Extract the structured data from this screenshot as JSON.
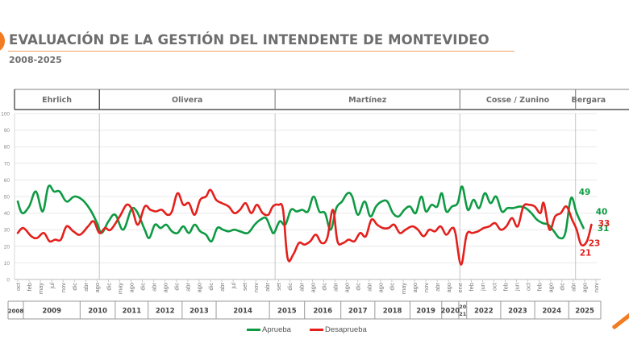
{
  "header": {
    "title": "EVALUACIÓN DE LA GESTIÓN DEL INTENDENTE DE MONTEVIDEO",
    "subtitle": "2008-2025"
  },
  "colors": {
    "aprueba": "#0e9a43",
    "desaprueba": "#e3201c",
    "accent": "#f37b20",
    "grid": "#e6e6e6",
    "text": "#6d6d6d"
  },
  "chart_data": {
    "type": "line",
    "title": "EVALUACIÓN DE LA GESTIÓN DEL INTENDENTE DE MONTEVIDEO",
    "subtitle": "2008-2025",
    "xlabel": "",
    "ylabel": "",
    "ylim": [
      0,
      100
    ],
    "yticks": [
      0,
      10,
      20,
      30,
      40,
      50,
      60,
      70,
      80,
      90,
      100
    ],
    "grid": true,
    "legend_position": "bottom-center",
    "x_ticks": [
      "oct",
      "feb",
      "may",
      "jul",
      "nov",
      "dic",
      "abr",
      "ago",
      "dic",
      "may",
      "ago",
      "dic",
      "abr",
      "ago",
      "dic",
      "abr",
      "ago",
      "dic",
      "abr",
      "jul",
      "set",
      "nov",
      "abr",
      "set",
      "dic",
      "abr",
      "ago",
      "dic",
      "abr",
      "ago",
      "dic",
      "abr",
      "ago",
      "dic",
      "may",
      "ago",
      "nov",
      "abr",
      "ago",
      "ene",
      "feb",
      "jun",
      "oct",
      "feb",
      "jun",
      "oct",
      "feb",
      "ago",
      "dic",
      "abr",
      "ago",
      "nov"
    ],
    "years": [
      {
        "label": "2008",
        "from": 0,
        "to": 0.5
      },
      {
        "label": "2009",
        "from": 0.5,
        "to": 5.5
      },
      {
        "label": "2010",
        "from": 5.5,
        "to": 8.6
      },
      {
        "label": "2011",
        "from": 8.6,
        "to": 11.5
      },
      {
        "label": "2012",
        "from": 11.5,
        "to": 14.5
      },
      {
        "label": "2013",
        "from": 14.5,
        "to": 17.5
      },
      {
        "label": "2014",
        "from": 17.5,
        "to": 22.2
      },
      {
        "label": "2015",
        "from": 22.2,
        "to": 25.3
      },
      {
        "label": "2016",
        "from": 25.3,
        "to": 28.5
      },
      {
        "label": "2017",
        "from": 28.5,
        "to": 31.5
      },
      {
        "label": "2018",
        "from": 31.5,
        "to": 34.6
      },
      {
        "label": "2019",
        "from": 34.6,
        "to": 37.4
      },
      {
        "label": "2020",
        "from": 37.4,
        "to": 38.9
      },
      {
        "label": "20\n21",
        "from": 38.9,
        "to": 39.6
      },
      {
        "label": "2022",
        "from": 39.6,
        "to": 42.6
      },
      {
        "label": "2023",
        "from": 42.6,
        "to": 45.6
      },
      {
        "label": "2024",
        "from": 45.6,
        "to": 48.6
      },
      {
        "label": "2025",
        "from": 48.6,
        "to": 51.5
      }
    ],
    "periods": [
      {
        "label": "Ehrlich",
        "from": -0.5,
        "to": 7.2
      },
      {
        "label": "Olivera",
        "from": 7.2,
        "to": 22.7
      },
      {
        "label": "Martínez",
        "from": 22.7,
        "to": 39.0
      },
      {
        "label": "Cosse / Zunino",
        "from": 39.0,
        "to": 49.2
      },
      {
        "label": "Bergara",
        "from": 49.2,
        "to": 51.5
      }
    ],
    "period_dividers": [
      7.2,
      22.7,
      39.0,
      49.2
    ],
    "series": [
      {
        "name": "Aprueba",
        "color": "#0e9a43",
        "points": [
          [
            0,
            47
          ],
          [
            0.4,
            40
          ],
          [
            1,
            44
          ],
          [
            1.6,
            53
          ],
          [
            2.2,
            41
          ],
          [
            2.7,
            56
          ],
          [
            3.2,
            53
          ],
          [
            3.7,
            53
          ],
          [
            4.3,
            47
          ],
          [
            5,
            50
          ],
          [
            5.7,
            48
          ],
          [
            6.4,
            42
          ],
          [
            7,
            34
          ],
          [
            7.4,
            28
          ],
          [
            8,
            35
          ],
          [
            8.6,
            39
          ],
          [
            9.3,
            30
          ],
          [
            10,
            42
          ],
          [
            10.5,
            41
          ],
          [
            11.2,
            30
          ],
          [
            11.6,
            25
          ],
          [
            12.1,
            33
          ],
          [
            12.6,
            31
          ],
          [
            13.1,
            33
          ],
          [
            13.6,
            29
          ],
          [
            14.1,
            28
          ],
          [
            14.6,
            32
          ],
          [
            15.1,
            28
          ],
          [
            15.6,
            33
          ],
          [
            16.1,
            29
          ],
          [
            16.6,
            27
          ],
          [
            17.1,
            23
          ],
          [
            17.6,
            31
          ],
          [
            18.1,
            30
          ],
          [
            18.6,
            29
          ],
          [
            19.1,
            30
          ],
          [
            19.6,
            29
          ],
          [
            20.3,
            28
          ],
          [
            20.9,
            33
          ],
          [
            21.4,
            36
          ],
          [
            21.9,
            37
          ],
          [
            22.3,
            31
          ],
          [
            22.6,
            28
          ],
          [
            23.1,
            35
          ],
          [
            23.6,
            33
          ],
          [
            24.1,
            42
          ],
          [
            24.6,
            41
          ],
          [
            25.1,
            42
          ],
          [
            25.6,
            41
          ],
          [
            26.1,
            50
          ],
          [
            26.6,
            41
          ],
          [
            27.1,
            40
          ],
          [
            27.6,
            30
          ],
          [
            28.1,
            43
          ],
          [
            28.6,
            47
          ],
          [
            29.1,
            52
          ],
          [
            29.5,
            50
          ],
          [
            30,
            39
          ],
          [
            30.6,
            47
          ],
          [
            31.1,
            38
          ],
          [
            31.6,
            44
          ],
          [
            32.1,
            47
          ],
          [
            32.6,
            47
          ],
          [
            33.1,
            40
          ],
          [
            33.6,
            38
          ],
          [
            34.1,
            42
          ],
          [
            34.6,
            44
          ],
          [
            35.1,
            40
          ],
          [
            35.6,
            50
          ],
          [
            36,
            41
          ],
          [
            36.5,
            45
          ],
          [
            37,
            44
          ],
          [
            37.4,
            52
          ],
          [
            37.8,
            41
          ],
          [
            38.3,
            44
          ],
          [
            38.8,
            46
          ],
          [
            39.2,
            56
          ],
          [
            39.7,
            42
          ],
          [
            40.2,
            48
          ],
          [
            40.7,
            43
          ],
          [
            41.2,
            52
          ],
          [
            41.7,
            46
          ],
          [
            42.2,
            50
          ],
          [
            42.7,
            41
          ],
          [
            43.2,
            43
          ],
          [
            43.7,
            43
          ],
          [
            44.3,
            44
          ],
          [
            44.8,
            43
          ],
          [
            45.3,
            40
          ],
          [
            45.8,
            36
          ],
          [
            46.3,
            34
          ],
          [
            46.8,
            33
          ],
          [
            47.3,
            29
          ],
          [
            47.8,
            25
          ],
          [
            48.3,
            28
          ],
          [
            48.8,
            49
          ],
          [
            49.3,
            40
          ],
          [
            49.9,
            31
          ]
        ]
      },
      {
        "name": "Desaprueba",
        "color": "#e3201c",
        "points": [
          [
            0,
            28
          ],
          [
            0.5,
            31
          ],
          [
            1.2,
            26
          ],
          [
            1.7,
            25
          ],
          [
            2.3,
            28
          ],
          [
            2.8,
            23
          ],
          [
            3.3,
            24
          ],
          [
            3.8,
            24
          ],
          [
            4.3,
            32
          ],
          [
            4.9,
            29
          ],
          [
            5.5,
            27
          ],
          [
            6.2,
            32
          ],
          [
            6.7,
            35
          ],
          [
            7.2,
            28
          ],
          [
            7.7,
            31
          ],
          [
            8.2,
            30
          ],
          [
            9,
            38
          ],
          [
            9.6,
            45
          ],
          [
            10.1,
            42
          ],
          [
            10.6,
            33
          ],
          [
            11.2,
            44
          ],
          [
            11.7,
            42
          ],
          [
            12.2,
            41
          ],
          [
            12.7,
            42
          ],
          [
            13.2,
            39
          ],
          [
            13.6,
            41
          ],
          [
            14.1,
            52
          ],
          [
            14.6,
            45
          ],
          [
            15.1,
            46
          ],
          [
            15.6,
            39
          ],
          [
            16.1,
            48
          ],
          [
            16.6,
            50
          ],
          [
            17,
            54
          ],
          [
            17.5,
            48
          ],
          [
            18,
            46
          ],
          [
            18.6,
            44
          ],
          [
            19.1,
            40
          ],
          [
            19.6,
            42
          ],
          [
            20.1,
            46
          ],
          [
            20.6,
            40
          ],
          [
            21.1,
            45
          ],
          [
            21.6,
            40
          ],
          [
            22.1,
            39
          ],
          [
            22.5,
            44
          ],
          [
            23,
            45
          ],
          [
            23.4,
            42
          ],
          [
            23.8,
            13
          ],
          [
            24.3,
            15
          ],
          [
            24.8,
            22
          ],
          [
            25.3,
            21
          ],
          [
            25.8,
            23
          ],
          [
            26.3,
            27
          ],
          [
            26.8,
            22
          ],
          [
            27.3,
            25
          ],
          [
            27.8,
            42
          ],
          [
            28.2,
            23
          ],
          [
            28.7,
            22
          ],
          [
            29.2,
            24
          ],
          [
            29.7,
            23
          ],
          [
            30.2,
            28
          ],
          [
            30.7,
            26
          ],
          [
            31.2,
            36
          ],
          [
            31.7,
            33
          ],
          [
            32.2,
            31
          ],
          [
            32.7,
            31
          ],
          [
            33.2,
            33
          ],
          [
            33.7,
            28
          ],
          [
            34.2,
            30
          ],
          [
            34.8,
            32
          ],
          [
            35.3,
            30
          ],
          [
            35.8,
            26
          ],
          [
            36.3,
            30
          ],
          [
            36.8,
            29
          ],
          [
            37.3,
            32
          ],
          [
            37.8,
            27
          ],
          [
            38.3,
            31
          ],
          [
            38.6,
            28
          ],
          [
            39.1,
            9
          ],
          [
            39.6,
            27
          ],
          [
            40.1,
            28
          ],
          [
            40.6,
            29
          ],
          [
            41.1,
            31
          ],
          [
            41.6,
            32
          ],
          [
            42.1,
            34
          ],
          [
            42.6,
            30
          ],
          [
            43.1,
            32
          ],
          [
            43.6,
            37
          ],
          [
            44.1,
            32
          ],
          [
            44.6,
            44
          ],
          [
            45.1,
            45
          ],
          [
            45.6,
            44
          ],
          [
            46.1,
            40
          ],
          [
            46.4,
            46
          ],
          [
            46.9,
            30
          ],
          [
            47.4,
            38
          ],
          [
            47.9,
            40
          ],
          [
            48.4,
            44
          ],
          [
            48.9,
            36
          ],
          [
            49.3,
            30
          ],
          [
            49.7,
            21
          ],
          [
            50.2,
            23
          ],
          [
            50.6,
            33
          ]
        ]
      }
    ],
    "annotations": [
      {
        "series": "Aprueba",
        "label": "49",
        "value": 49
      },
      {
        "series": "Aprueba",
        "label": "40",
        "value": 40
      },
      {
        "series": "Aprueba",
        "label": "31",
        "value": 31
      },
      {
        "series": "Desaprueba",
        "label": "21",
        "value": 21
      },
      {
        "series": "Desaprueba",
        "label": "23",
        "value": 23
      },
      {
        "series": "Desaprueba",
        "label": "33",
        "value": 33
      }
    ]
  },
  "legend": {
    "items": [
      {
        "label": "Aprueba"
      },
      {
        "label": "Desaprueba"
      }
    ]
  }
}
